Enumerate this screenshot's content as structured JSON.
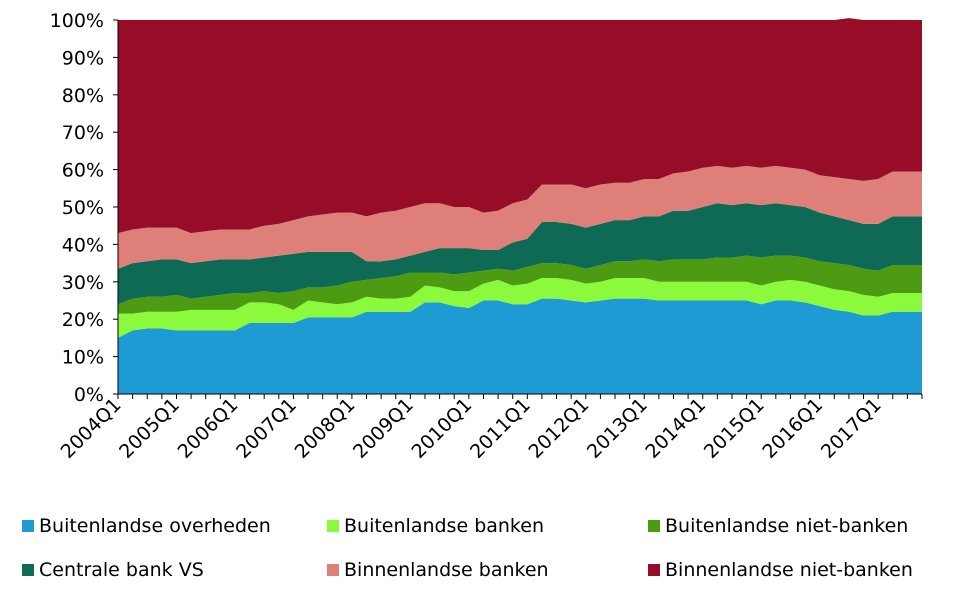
{
  "chart_data": {
    "type": "area",
    "stacked": true,
    "normalized": true,
    "ylim": [
      0,
      100
    ],
    "y_tick_labels": [
      "0%",
      "10%",
      "20%",
      "30%",
      "40%",
      "50%",
      "60%",
      "70%",
      "80%",
      "90%",
      "100%"
    ],
    "y_ticks": [
      0,
      10,
      20,
      30,
      40,
      50,
      60,
      70,
      80,
      90,
      100
    ],
    "x_tick_labels": [
      "2004Q1",
      "2005Q1",
      "2006Q1",
      "2007Q1",
      "2008Q1",
      "2009Q1",
      "2010Q1",
      "2011Q1",
      "2012Q1",
      "2013Q1",
      "2014Q1",
      "2015Q1",
      "2016Q1",
      "2017Q1"
    ],
    "x": [
      "2004Q1",
      "2004Q2",
      "2004Q3",
      "2004Q4",
      "2005Q1",
      "2005Q2",
      "2005Q3",
      "2005Q4",
      "2006Q1",
      "2006Q2",
      "2006Q3",
      "2006Q4",
      "2007Q1",
      "2007Q2",
      "2007Q3",
      "2007Q4",
      "2008Q1",
      "2008Q2",
      "2008Q3",
      "2008Q4",
      "2009Q1",
      "2009Q2",
      "2009Q3",
      "2009Q4",
      "2010Q1",
      "2010Q2",
      "2010Q3",
      "2010Q4",
      "2011Q1",
      "2011Q2",
      "2011Q3",
      "2011Q4",
      "2012Q1",
      "2012Q2",
      "2012Q3",
      "2012Q4",
      "2013Q1",
      "2013Q2",
      "2013Q3",
      "2013Q4",
      "2014Q1",
      "2014Q2",
      "2014Q3",
      "2014Q4",
      "2015Q1",
      "2015Q2",
      "2015Q3",
      "2015Q4",
      "2016Q1",
      "2016Q2",
      "2016Q3",
      "2016Q4",
      "2017Q1",
      "2017Q2",
      "2017Q3",
      "2017Q4"
    ],
    "series_colors": [
      "#1f9bd3",
      "#8cfa3c",
      "#4c9b12",
      "#0e6a55",
      "#de8079",
      "#970d27"
    ],
    "legend_position": "bottom",
    "grid": false,
    "series": [
      {
        "name": "Buitenlandse overheden",
        "values": [
          15,
          17,
          17.5,
          17.5,
          17,
          17,
          17,
          17,
          17,
          19,
          19,
          19,
          19,
          20.5,
          20.5,
          20.5,
          20.5,
          22,
          22,
          22,
          22,
          24.5,
          24.5,
          23.5,
          23,
          25,
          25,
          24,
          24,
          25.5,
          25.5,
          25,
          24.5,
          25,
          25.5,
          25.5,
          25.5,
          25,
          25,
          25,
          25,
          25,
          25,
          25,
          24,
          25,
          25,
          24.5,
          23.5,
          22.5,
          22,
          21,
          21,
          22,
          22,
          22
        ]
      },
      {
        "name": "Buitenlandse banken",
        "values": [
          6.5,
          4.5,
          4.5,
          4.5,
          5,
          5.5,
          5.5,
          5.5,
          5.5,
          5.5,
          5.5,
          5,
          3.5,
          4.5,
          4,
          3.5,
          4,
          4,
          3.5,
          3.5,
          4,
          4.5,
          4,
          4,
          4.5,
          4.5,
          5.5,
          5,
          5.5,
          5.5,
          5.5,
          5.5,
          5,
          5,
          5.5,
          5.5,
          5.5,
          5,
          5,
          5,
          5,
          5,
          5,
          5,
          5,
          5,
          5.5,
          5.5,
          5.5,
          5.5,
          5.5,
          5.5,
          5,
          5,
          5,
          5
        ]
      },
      {
        "name": "Buitenlandse niet-banken",
        "values": [
          2.5,
          4,
          4,
          4,
          4.5,
          3,
          3.5,
          4,
          4.5,
          2.5,
          3,
          3,
          5,
          3.5,
          4,
          5,
          5.5,
          4.5,
          5.5,
          6,
          6.5,
          3.5,
          4,
          4.5,
          5,
          3.5,
          3,
          4,
          4.5,
          4,
          4,
          4,
          4,
          4.5,
          4.5,
          4.5,
          5,
          5.5,
          6,
          6,
          6,
          6.5,
          6.5,
          7,
          7.5,
          7,
          6.5,
          6.5,
          6.5,
          7,
          7,
          7,
          7,
          7.5,
          7.5,
          7.5
        ]
      },
      {
        "name": "Centrale bank VS",
        "values": [
          9.5,
          9.5,
          9.5,
          10,
          9.5,
          9.5,
          9.5,
          9.5,
          9,
          9,
          9,
          10,
          10,
          9.5,
          9.5,
          9,
          8,
          5,
          4.5,
          4.5,
          4.5,
          5.5,
          6.5,
          7,
          6.5,
          5.5,
          5,
          7.5,
          7.5,
          11,
          11,
          11,
          11,
          11,
          11,
          11,
          11.5,
          12,
          13,
          13,
          14,
          14.5,
          14,
          14,
          14,
          14,
          13.5,
          13.5,
          13,
          12.5,
          12,
          12,
          12.5,
          13,
          13,
          13
        ]
      },
      {
        "name": "Binnenlandse banken",
        "values": [
          9.5,
          9,
          9,
          8.5,
          8.5,
          8,
          8,
          8,
          8,
          8,
          8.5,
          8.5,
          9,
          9.5,
          10,
          10.5,
          10.5,
          12,
          13,
          13,
          13,
          13,
          12,
          11,
          11,
          10,
          10.5,
          10.5,
          10.5,
          10,
          10,
          10.5,
          10.5,
          10.5,
          10,
          10,
          10,
          10,
          10,
          10.5,
          10.5,
          10,
          10,
          10,
          10,
          10,
          10,
          10,
          10,
          10.5,
          11,
          11.5,
          12,
          12,
          12,
          12
        ]
      },
      {
        "name": "Binnenlandse niet-banken",
        "values": [
          57,
          56,
          55.5,
          55.5,
          55.5,
          57,
          56.5,
          56,
          56,
          56,
          55,
          54.5,
          53.5,
          52.5,
          52,
          51.5,
          51.5,
          52.5,
          51.5,
          51,
          50,
          49,
          49,
          50,
          50,
          51.5,
          51,
          49,
          48,
          44,
          44,
          44,
          45,
          44,
          43.5,
          43.5,
          42.5,
          42.5,
          41,
          40.5,
          39.5,
          39,
          39.5,
          39,
          39.5,
          39,
          39.5,
          40,
          41.5,
          42,
          43,
          43,
          42.5,
          40.5,
          40.5,
          40.5
        ]
      }
    ]
  }
}
